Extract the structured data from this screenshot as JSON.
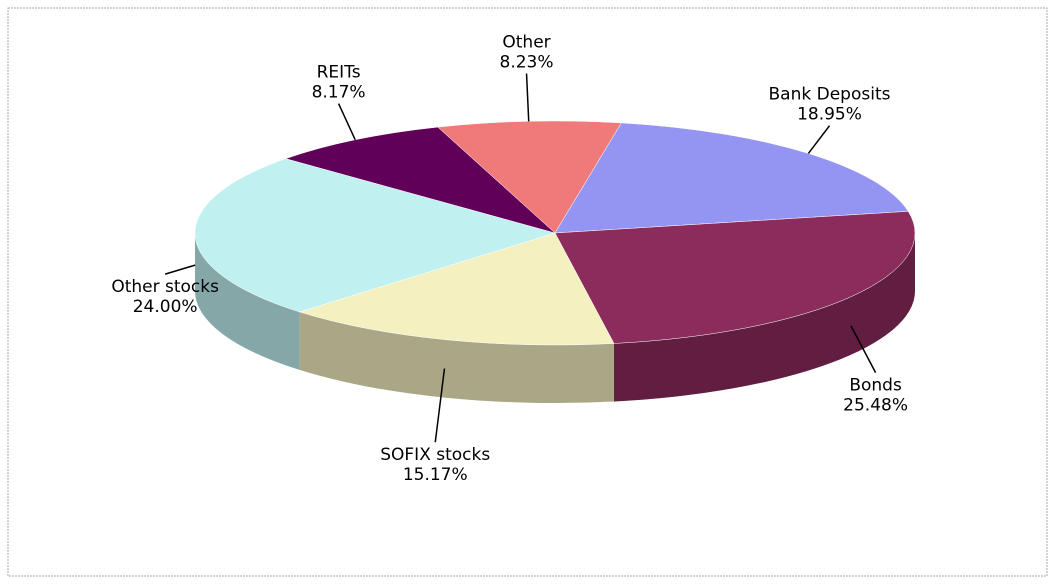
{
  "chart_data": {
    "type": "pie",
    "categories": [
      "Other",
      "Bank Deposits",
      "Bonds",
      "SOFIX stocks",
      "Other stocks",
      "REITs"
    ],
    "values": [
      8.23,
      18.95,
      25.48,
      15.17,
      24.0,
      8.17
    ],
    "value_labels": [
      "8.23%",
      "18.95%",
      "25.48%",
      "15.17%",
      "24.00%",
      "8.17%"
    ],
    "colors": [
      "#f07a7a",
      "#9494f2",
      "#8c2c5c",
      "#f4f0c0",
      "#c0f0f0",
      "#600058"
    ]
  }
}
